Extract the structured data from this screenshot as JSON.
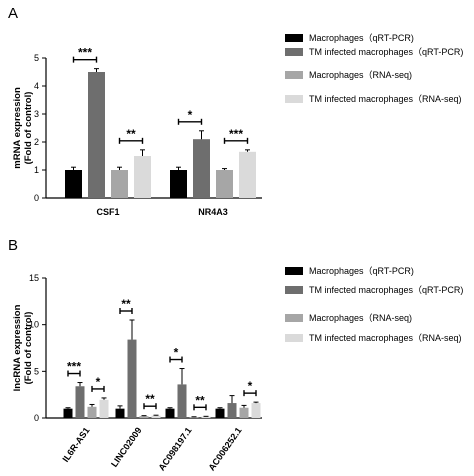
{
  "colors": {
    "macrophages_qrt": "#000000",
    "tm_qrt": "#6e6e6e",
    "macrophages_rnaseq": "#a6a6a6",
    "tm_rnaseq": "#dadada"
  },
  "chart_data": [
    {
      "panel": "A",
      "type": "bar",
      "ylabel": "mRNA expression",
      "ylabel2": "(Fold of control)",
      "ylim": [
        0,
        5
      ],
      "yticks": [
        0,
        1,
        2,
        3,
        4,
        5
      ],
      "categories": [
        "CSF1",
        "NR4A3"
      ],
      "series": [
        {
          "name": "Macrophages（qRT-PCR)",
          "values": [
            1.0,
            1.0
          ],
          "errors": [
            0.1,
            0.1
          ]
        },
        {
          "name": "TM infected macrophages（qRT-PCR)",
          "values": [
            4.5,
            2.1
          ],
          "errors": [
            0.12,
            0.3
          ]
        },
        {
          "name": "Macrophages（RNA-seq)",
          "values": [
            1.0,
            1.0
          ],
          "errors": [
            0.1,
            0.05
          ]
        },
        {
          "name": "TM infected macrophages（RNA-seq)",
          "values": [
            1.5,
            1.65
          ],
          "errors": [
            0.22,
            0.07
          ]
        }
      ],
      "significance": [
        {
          "category": 0,
          "between": [
            0,
            1
          ],
          "label": "***"
        },
        {
          "category": 0,
          "between": [
            2,
            3
          ],
          "label": "**"
        },
        {
          "category": 1,
          "between": [
            0,
            1
          ],
          "label": "*"
        },
        {
          "category": 1,
          "between": [
            2,
            3
          ],
          "label": "***"
        }
      ]
    },
    {
      "panel": "B",
      "type": "bar",
      "ylabel": "lncRNA expression",
      "ylabel2": "(Fold of control)",
      "ylim": [
        0,
        15
      ],
      "yticks": [
        0,
        5,
        10,
        15
      ],
      "categories": [
        "IL6R-AS1",
        "LINC02009",
        "AC098197.1",
        "AC006252.1"
      ],
      "series": [
        {
          "name": "Macrophages（qRT-PCR)",
          "values": [
            1.0,
            1.0,
            1.0,
            1.0
          ],
          "errors": [
            0.1,
            0.3,
            0.1,
            0.1
          ]
        },
        {
          "name": "TM infected macrophages（qRT-PCR)",
          "values": [
            3.4,
            8.4,
            3.6,
            1.6
          ],
          "errors": [
            0.4,
            2.1,
            1.7,
            0.8
          ]
        },
        {
          "name": "Macrophages（RNA-seq)",
          "values": [
            1.2,
            0.2,
            0.1,
            1.1
          ],
          "errors": [
            0.25,
            0.05,
            0.03,
            0.25
          ]
        },
        {
          "name": "TM infected macrophages（RNA-seq)",
          "values": [
            1.95,
            0.25,
            0.15,
            1.6
          ],
          "errors": [
            0.2,
            0.05,
            0.03,
            0.1
          ]
        }
      ],
      "significance": [
        {
          "category": 0,
          "between": [
            0,
            1
          ],
          "label": "***"
        },
        {
          "category": 0,
          "between": [
            2,
            3
          ],
          "label": "*"
        },
        {
          "category": 1,
          "between": [
            0,
            1
          ],
          "label": "**"
        },
        {
          "category": 1,
          "between": [
            2,
            3
          ],
          "label": "**"
        },
        {
          "category": 2,
          "between": [
            0,
            1
          ],
          "label": "*"
        },
        {
          "category": 2,
          "between": [
            2,
            3
          ],
          "label": "**"
        },
        {
          "category": 3,
          "between": [
            2,
            3
          ],
          "label": "*"
        }
      ]
    }
  ]
}
